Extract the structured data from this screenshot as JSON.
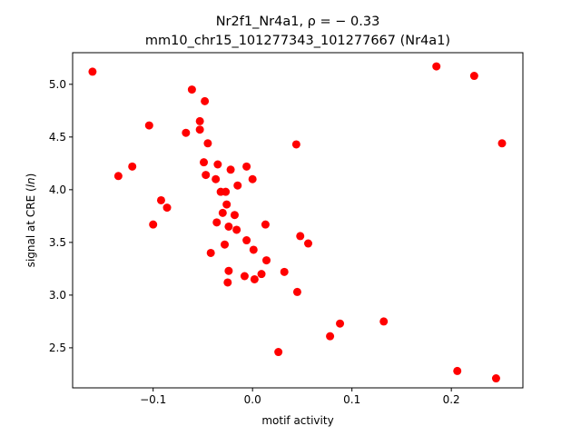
{
  "chart_data": {
    "type": "scatter",
    "title_line1": "Nr2f1_Nr4a1, ρ = − 0.33",
    "title_line2": "mm10_chr15_101277343_101277667 (Nr4a1)",
    "xlabel": "motif activity",
    "ylabel": "signal at CRE (ln)",
    "xlim": [
      -0.181,
      0.272
    ],
    "ylim": [
      2.12,
      5.3
    ],
    "xticks": [
      -0.1,
      0.0,
      0.1,
      0.2
    ],
    "xtick_labels": [
      "−0.1",
      "0.0",
      "0.1",
      "0.2"
    ],
    "yticks": [
      2.5,
      3.0,
      3.5,
      4.0,
      4.5,
      5.0
    ],
    "ytick_labels": [
      "2.5",
      "3.0",
      "3.5",
      "4.0",
      "4.5",
      "5.0"
    ],
    "grid": false,
    "marker_color": "#ff0000",
    "points": [
      {
        "x": -0.161,
        "y": 5.12
      },
      {
        "x": -0.135,
        "y": 4.13
      },
      {
        "x": -0.121,
        "y": 4.22
      },
      {
        "x": -0.104,
        "y": 4.61
      },
      {
        "x": -0.1,
        "y": 3.67
      },
      {
        "x": -0.092,
        "y": 3.9
      },
      {
        "x": -0.086,
        "y": 3.83
      },
      {
        "x": -0.067,
        "y": 4.54
      },
      {
        "x": -0.061,
        "y": 4.95
      },
      {
        "x": -0.053,
        "y": 4.65
      },
      {
        "x": -0.053,
        "y": 4.57
      },
      {
        "x": -0.048,
        "y": 4.84
      },
      {
        "x": -0.049,
        "y": 4.26
      },
      {
        "x": -0.047,
        "y": 4.14
      },
      {
        "x": -0.045,
        "y": 4.44
      },
      {
        "x": -0.042,
        "y": 3.4
      },
      {
        "x": -0.037,
        "y": 4.1
      },
      {
        "x": -0.036,
        "y": 3.69
      },
      {
        "x": -0.035,
        "y": 4.24
      },
      {
        "x": -0.032,
        "y": 3.98
      },
      {
        "x": -0.03,
        "y": 3.78
      },
      {
        "x": -0.028,
        "y": 3.48
      },
      {
        "x": -0.027,
        "y": 3.98
      },
      {
        "x": -0.026,
        "y": 3.86
      },
      {
        "x": -0.025,
        "y": 3.12
      },
      {
        "x": -0.024,
        "y": 3.23
      },
      {
        "x": -0.024,
        "y": 3.65
      },
      {
        "x": -0.022,
        "y": 4.19
      },
      {
        "x": -0.018,
        "y": 3.76
      },
      {
        "x": -0.016,
        "y": 3.62
      },
      {
        "x": -0.015,
        "y": 4.04
      },
      {
        "x": -0.008,
        "y": 3.18
      },
      {
        "x": -0.006,
        "y": 4.22
      },
      {
        "x": -0.006,
        "y": 3.52
      },
      {
        "x": 0.0,
        "y": 4.1
      },
      {
        "x": 0.001,
        "y": 3.43
      },
      {
        "x": 0.002,
        "y": 3.15
      },
      {
        "x": 0.009,
        "y": 3.2
      },
      {
        "x": 0.013,
        "y": 3.67
      },
      {
        "x": 0.014,
        "y": 3.33
      },
      {
        "x": 0.026,
        "y": 2.46
      },
      {
        "x": 0.032,
        "y": 3.22
      },
      {
        "x": 0.044,
        "y": 4.43
      },
      {
        "x": 0.045,
        "y": 3.03
      },
      {
        "x": 0.048,
        "y": 3.56
      },
      {
        "x": 0.056,
        "y": 3.49
      },
      {
        "x": 0.078,
        "y": 2.61
      },
      {
        "x": 0.088,
        "y": 2.73
      },
      {
        "x": 0.132,
        "y": 2.75
      },
      {
        "x": 0.185,
        "y": 5.17
      },
      {
        "x": 0.206,
        "y": 2.28
      },
      {
        "x": 0.223,
        "y": 5.08
      },
      {
        "x": 0.245,
        "y": 2.21
      },
      {
        "x": 0.251,
        "y": 4.44
      }
    ]
  }
}
